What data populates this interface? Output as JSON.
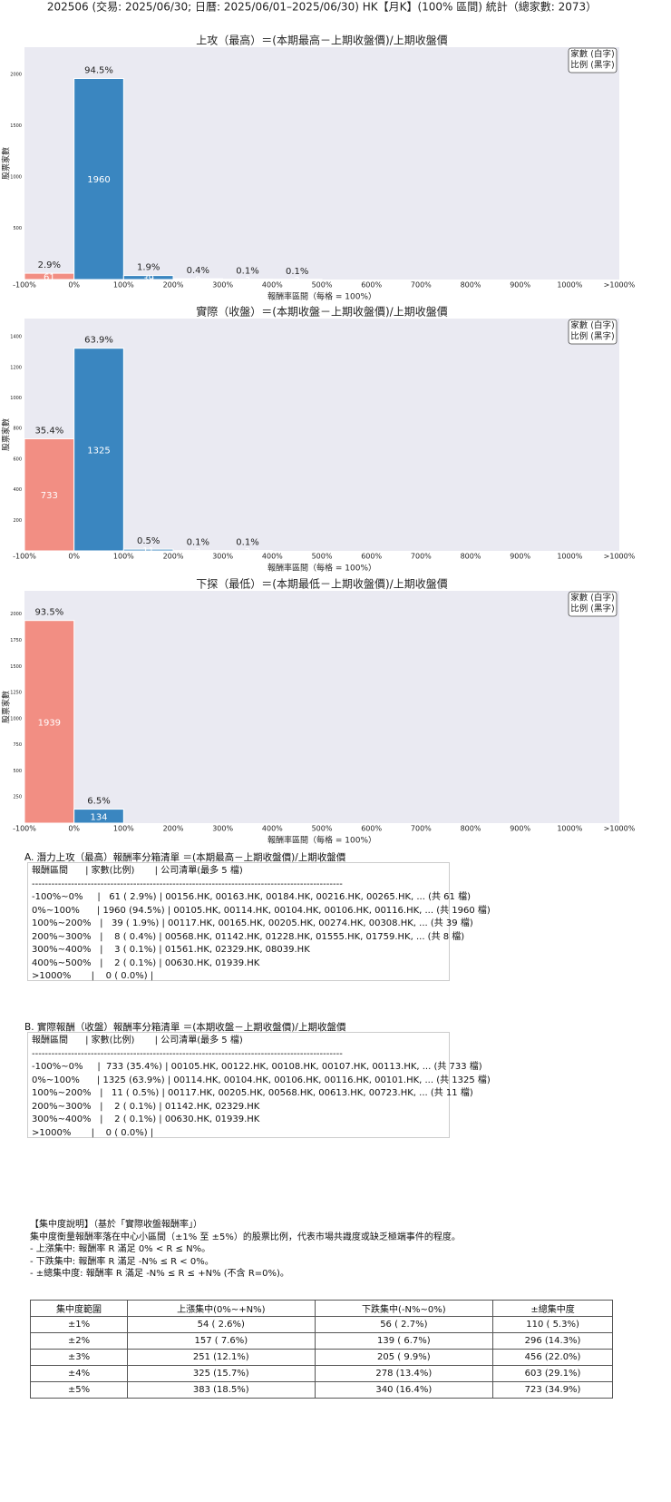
{
  "header": {
    "title": "202506 (交易: 2025/06/30; 日曆: 2025/06/01–2025/06/30) HK【月K】(100% 區間) 統計（總家數: 2073）"
  },
  "chart_data": [
    {
      "type": "histogram",
      "title": "上攻（最高）＝(本期最高－上期收盤價)/上期收盤價",
      "x_label": "報酬率區間（每格 = 100%）",
      "y_label": "股票家數",
      "bins": [
        -100,
        0,
        100,
        200,
        300,
        400,
        500,
        600,
        700,
        800,
        900,
        1000,
        1100
      ],
      "values": [
        61,
        1960,
        39,
        8,
        3,
        2,
        0,
        0,
        0,
        0,
        0,
        0
      ],
      "percent_labels": [
        "2.9%",
        "94.5%",
        "1.9%",
        "0.4%",
        "0.1%",
        "0.1%",
        null,
        null,
        null,
        null,
        null,
        null
      ],
      "colors": [
        "#f28e83",
        "#3a86c0",
        "#3a86c0",
        "#3a86c0",
        "#3a86c0",
        "#3a86c0",
        "#3a86c0",
        "#3a86c0",
        "#3a86c0",
        "#3a86c0",
        "#3a86c0",
        "#3a86c0"
      ],
      "xlim": [
        -100,
        1100
      ],
      "xticks": [
        {
          "value": -100,
          "label": "-100%"
        },
        {
          "value": 0,
          "label": "0%"
        },
        {
          "value": 100,
          "label": "100%"
        },
        {
          "value": 200,
          "label": "200%"
        },
        {
          "value": 300,
          "label": "300%"
        },
        {
          "value": 400,
          "label": "400%"
        },
        {
          "value": 500,
          "label": "500%"
        },
        {
          "value": 600,
          "label": "600%"
        },
        {
          "value": 700,
          "label": "700%"
        },
        {
          "value": 800,
          "label": "800%"
        },
        {
          "value": 900,
          "label": "900%"
        },
        {
          "value": 1000,
          "label": "1000%"
        },
        {
          "value": 1100,
          "label": ">1000%"
        }
      ],
      "ylim": [
        0,
        2265
      ],
      "yticks": [
        500,
        1000,
        1500,
        2000
      ],
      "legend_note": [
        "家數 (白字)",
        "比例 (黑字)"
      ]
    },
    {
      "type": "histogram",
      "title": "實際（收盤）＝(本期收盤－上期收盤價)/上期收盤價",
      "x_label": "報酬率區間（每格 = 100%）",
      "y_label": "股票家數",
      "bins": [
        -100,
        0,
        100,
        200,
        300,
        400,
        500,
        600,
        700,
        800,
        900,
        1000,
        1100
      ],
      "values": [
        733,
        1325,
        11,
        2,
        2,
        0,
        0,
        0,
        0,
        0,
        0,
        0
      ],
      "percent_labels": [
        "35.4%",
        "63.9%",
        "0.5%",
        "0.1%",
        "0.1%",
        null,
        null,
        null,
        null,
        null,
        null,
        null
      ],
      "colors": [
        "#f28e83",
        "#3a86c0",
        "#3a86c0",
        "#3a86c0",
        "#3a86c0",
        "#3a86c0",
        "#3a86c0",
        "#3a86c0",
        "#3a86c0",
        "#3a86c0",
        "#3a86c0",
        "#3a86c0"
      ],
      "xlim": [
        -100,
        1100
      ],
      "xticks": [
        {
          "value": -100,
          "label": "-100%"
        },
        {
          "value": 0,
          "label": "0%"
        },
        {
          "value": 100,
          "label": "100%"
        },
        {
          "value": 200,
          "label": "200%"
        },
        {
          "value": 300,
          "label": "300%"
        },
        {
          "value": 400,
          "label": "400%"
        },
        {
          "value": 500,
          "label": "500%"
        },
        {
          "value": 600,
          "label": "600%"
        },
        {
          "value": 700,
          "label": "700%"
        },
        {
          "value": 800,
          "label": "800%"
        },
        {
          "value": 900,
          "label": "900%"
        },
        {
          "value": 1000,
          "label": "1000%"
        },
        {
          "value": 1100,
          "label": ">1000%"
        }
      ],
      "ylim": [
        0,
        1519
      ],
      "yticks": [
        200,
        400,
        600,
        800,
        1000,
        1200,
        1400
      ],
      "legend_note": [
        "家數 (白字)",
        "比例 (黑字)"
      ]
    },
    {
      "type": "histogram",
      "title": "下探（最低）＝(本期最低－上期收盤價)/上期收盤價",
      "x_label": "報酬率區間（每格 = 100%）",
      "y_label": "股票家數",
      "bins": [
        -100,
        0,
        100,
        200,
        300,
        400,
        500,
        600,
        700,
        800,
        900,
        1000,
        1100
      ],
      "values": [
        1939,
        134,
        0,
        0,
        0,
        0,
        0,
        0,
        0,
        0,
        0,
        0
      ],
      "percent_labels": [
        "93.5%",
        "6.5%",
        null,
        null,
        null,
        null,
        null,
        null,
        null,
        null,
        null,
        null
      ],
      "colors": [
        "#f28e83",
        "#3a86c0",
        "#3a86c0",
        "#3a86c0",
        "#3a86c0",
        "#3a86c0",
        "#3a86c0",
        "#3a86c0",
        "#3a86c0",
        "#3a86c0",
        "#3a86c0",
        "#3a86c0"
      ],
      "xlim": [
        -100,
        1100
      ],
      "xticks": [
        {
          "value": -100,
          "label": "-100%"
        },
        {
          "value": 0,
          "label": "0%"
        },
        {
          "value": 100,
          "label": "100%"
        },
        {
          "value": 200,
          "label": "200%"
        },
        {
          "value": 300,
          "label": "300%"
        },
        {
          "value": 400,
          "label": "400%"
        },
        {
          "value": 500,
          "label": "500%"
        },
        {
          "value": 600,
          "label": "600%"
        },
        {
          "value": 700,
          "label": "700%"
        },
        {
          "value": 800,
          "label": "800%"
        },
        {
          "value": 900,
          "label": "900%"
        },
        {
          "value": 1000,
          "label": "1000%"
        },
        {
          "value": 1100,
          "label": ">1000%"
        }
      ],
      "ylim": [
        0,
        2223
      ],
      "yticks": [
        250,
        500,
        750,
        1000,
        1250,
        1500,
        1750,
        2000
      ],
      "legend_note": [
        "家數 (白字)",
        "比例 (黑字)"
      ]
    }
  ],
  "list_a": {
    "title": "A. 潛力上攻（最高）報酬率分箱清單 ＝(本期最高－上期收盤價)/上期收盤價",
    "lines": [
      "報酬區間      | 家數(比例)       | 公司清單(最多 5 檔)",
      "-----------------------------------------------------------------------------------------------",
      "-100%~0%     |   61 ( 2.9%) | 00156.HK, 00163.HK, 00184.HK, 00216.HK, 00265.HK, ... (共 61 檔)",
      "0%~100%      | 1960 (94.5%) | 00105.HK, 00114.HK, 00104.HK, 00106.HK, 00116.HK, ... (共 1960 檔)",
      "100%~200%   |   39 ( 1.9%) | 00117.HK, 00165.HK, 00205.HK, 00274.HK, 00308.HK, ... (共 39 檔)",
      "200%~300%   |    8 ( 0.4%) | 00568.HK, 01142.HK, 01228.HK, 01555.HK, 01759.HK, ... (共 8 檔)",
      "300%~400%   |    3 ( 0.1%) | 01561.HK, 02329.HK, 08039.HK",
      "400%~500%   |    2 ( 0.1%) | 00630.HK, 01939.HK",
      ">1000%       |    0 ( 0.0%) |"
    ]
  },
  "list_b": {
    "title": "B. 實際報酬（收盤）報酬率分箱清單 ＝(本期收盤－上期收盤價)/上期收盤價",
    "lines": [
      "報酬區間      | 家數(比例)       | 公司清單(最多 5 檔)",
      "-----------------------------------------------------------------------------------------------",
      "-100%~0%     |  733 (35.4%) | 00105.HK, 00122.HK, 00108.HK, 00107.HK, 00113.HK, ... (共 733 檔)",
      "0%~100%      | 1325 (63.9%) | 00114.HK, 00104.HK, 00106.HK, 00116.HK, 00101.HK, ... (共 1325 檔)",
      "100%~200%   |   11 ( 0.5%) | 00117.HK, 00205.HK, 00568.HK, 00613.HK, 00723.HK, ... (共 11 檔)",
      "200%~300%   |    2 ( 0.1%) | 01142.HK, 02329.HK",
      "300%~400%   |    2 ( 0.1%) | 00630.HK, 01939.HK",
      ">1000%       |    0 ( 0.0%) |"
    ]
  },
  "explanation": {
    "title": "【集中度說明】（基於「實際收盤報酬率」）",
    "lines": [
      "集中度衡量報酬率落在中心小區間（±1% 至 ±5%）的股票比例，代表市場共識度或缺乏極端事件的程度。",
      "- 上漲集中: 報酬率 R 滿足 0% < R ≤ N%。",
      "- 下跌集中: 報酬率 R 滿足 -N% ≤ R < 0%。",
      "- ±總集中度: 報酬率 R 滿足 -N% ≤ R ≤ +N% (不含 R=0%)。"
    ]
  },
  "table": {
    "columns": [
      "集中度範圍",
      "上漲集中(0%~+N%)",
      "下跌集中(-N%~0%)",
      "±總集中度"
    ],
    "rows": [
      [
        "±1%",
        "54 ( 2.6%)",
        "56 ( 2.7%)",
        "110 ( 5.3%)"
      ],
      [
        "±2%",
        "157 ( 7.6%)",
        "139 ( 6.7%)",
        "296 (14.3%)"
      ],
      [
        "±3%",
        "251 (12.1%)",
        "205 ( 9.9%)",
        "456 (22.0%)"
      ],
      [
        "±4%",
        "325 (15.7%)",
        "278 (13.4%)",
        "603 (29.1%)"
      ],
      [
        "±5%",
        "383 (18.5%)",
        "340 (16.4%)",
        "723 (34.9%)"
      ]
    ]
  }
}
